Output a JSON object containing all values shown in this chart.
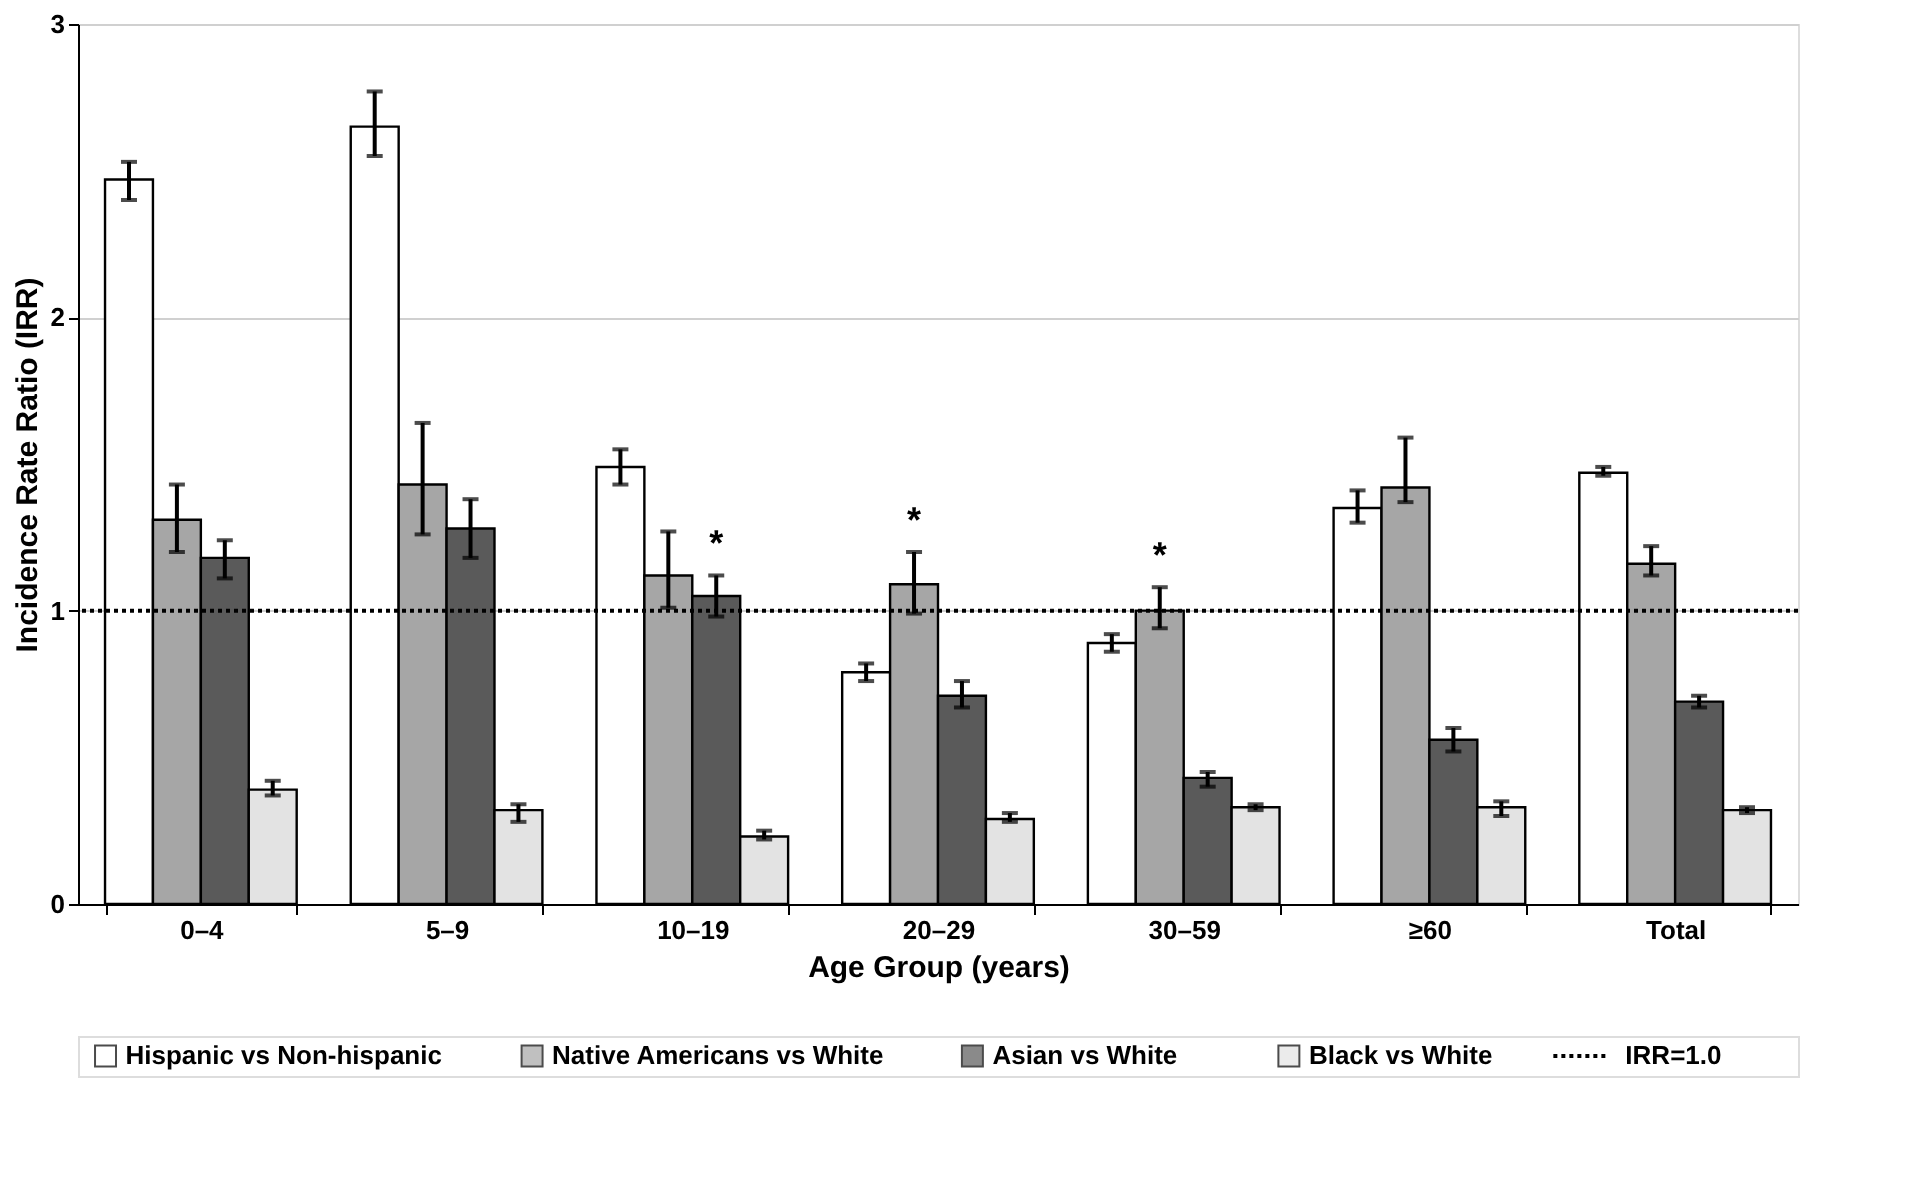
{
  "chart_data": {
    "type": "bar",
    "xlabel": "Age Group (years)",
    "ylabel": "Incidence Rate Ratio (IRR)",
    "categories": [
      "0–4",
      "5–9",
      "10–19",
      "20–29",
      "30–59",
      "≥60",
      "Total"
    ],
    "series": [
      {
        "name": "Hispanic vs Non-hispanic",
        "color": "#ffffff",
        "values": [
          2.47,
          2.65,
          1.49,
          0.79,
          0.89,
          1.35,
          1.47
        ],
        "errors": [
          [
            2.4,
            2.53
          ],
          [
            2.55,
            2.77
          ],
          [
            1.43,
            1.55
          ],
          [
            0.76,
            0.82
          ],
          [
            0.86,
            0.92
          ],
          [
            1.3,
            1.41
          ],
          [
            1.46,
            1.49
          ]
        ]
      },
      {
        "name": "Native Americans vs White",
        "color": "#a6a6a6",
        "values": [
          1.31,
          1.43,
          1.12,
          1.09,
          1.0,
          1.42,
          1.16
        ],
        "errors": [
          [
            1.2,
            1.43
          ],
          [
            1.26,
            1.64
          ],
          [
            1.01,
            1.27
          ],
          [
            0.99,
            1.2
          ],
          [
            0.94,
            1.08
          ],
          [
            1.37,
            1.59
          ],
          [
            1.12,
            1.22
          ]
        ],
        "value_labels": [
          null,
          null,
          null,
          "*",
          "*",
          null,
          null
        ]
      },
      {
        "name": "Asian vs White",
        "color": "#5a5a5a",
        "values": [
          1.18,
          1.28,
          1.05,
          0.71,
          0.43,
          0.56,
          0.69
        ],
        "errors": [
          [
            1.11,
            1.24
          ],
          [
            1.18,
            1.38
          ],
          [
            0.98,
            1.12
          ],
          [
            0.67,
            0.76
          ],
          [
            0.4,
            0.45
          ],
          [
            0.52,
            0.6
          ],
          [
            0.67,
            0.71
          ]
        ],
        "value_labels": [
          null,
          null,
          "*",
          null,
          null,
          null,
          null
        ]
      },
      {
        "name": "Black vs White",
        "color": "#e3e3e3",
        "values": [
          0.39,
          0.32,
          0.23,
          0.29,
          0.33,
          0.33,
          0.32
        ],
        "errors": [
          [
            0.37,
            0.42
          ],
          [
            0.28,
            0.34
          ],
          [
            0.22,
            0.25
          ],
          [
            0.28,
            0.31
          ],
          [
            0.32,
            0.34
          ],
          [
            0.3,
            0.35
          ],
          [
            0.31,
            0.33
          ]
        ]
      }
    ],
    "ylim": [
      0,
      3
    ],
    "yticks": [
      0,
      1,
      2,
      3
    ],
    "grid": "y",
    "legend": "bottom",
    "ref_lines": [
      {
        "axis": "y",
        "value": 1,
        "label": "IRR=1.0",
        "line_style": "dotted",
        "color": "#000000"
      }
    ]
  }
}
